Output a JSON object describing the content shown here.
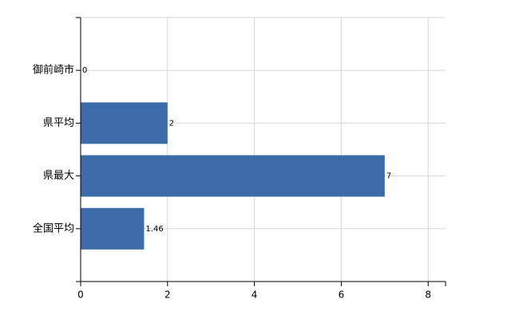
{
  "chart_data": {
    "type": "bar",
    "orientation": "horizontal",
    "categories": [
      "御前崎市",
      "県平均",
      "県最大",
      "全国平均"
    ],
    "values": [
      0,
      2,
      7,
      1.46
    ],
    "color": "#3b6ba8",
    "xlim": [
      0,
      8.4
    ],
    "xticks": [
      0,
      2,
      4,
      6,
      8
    ],
    "grid": true
  }
}
